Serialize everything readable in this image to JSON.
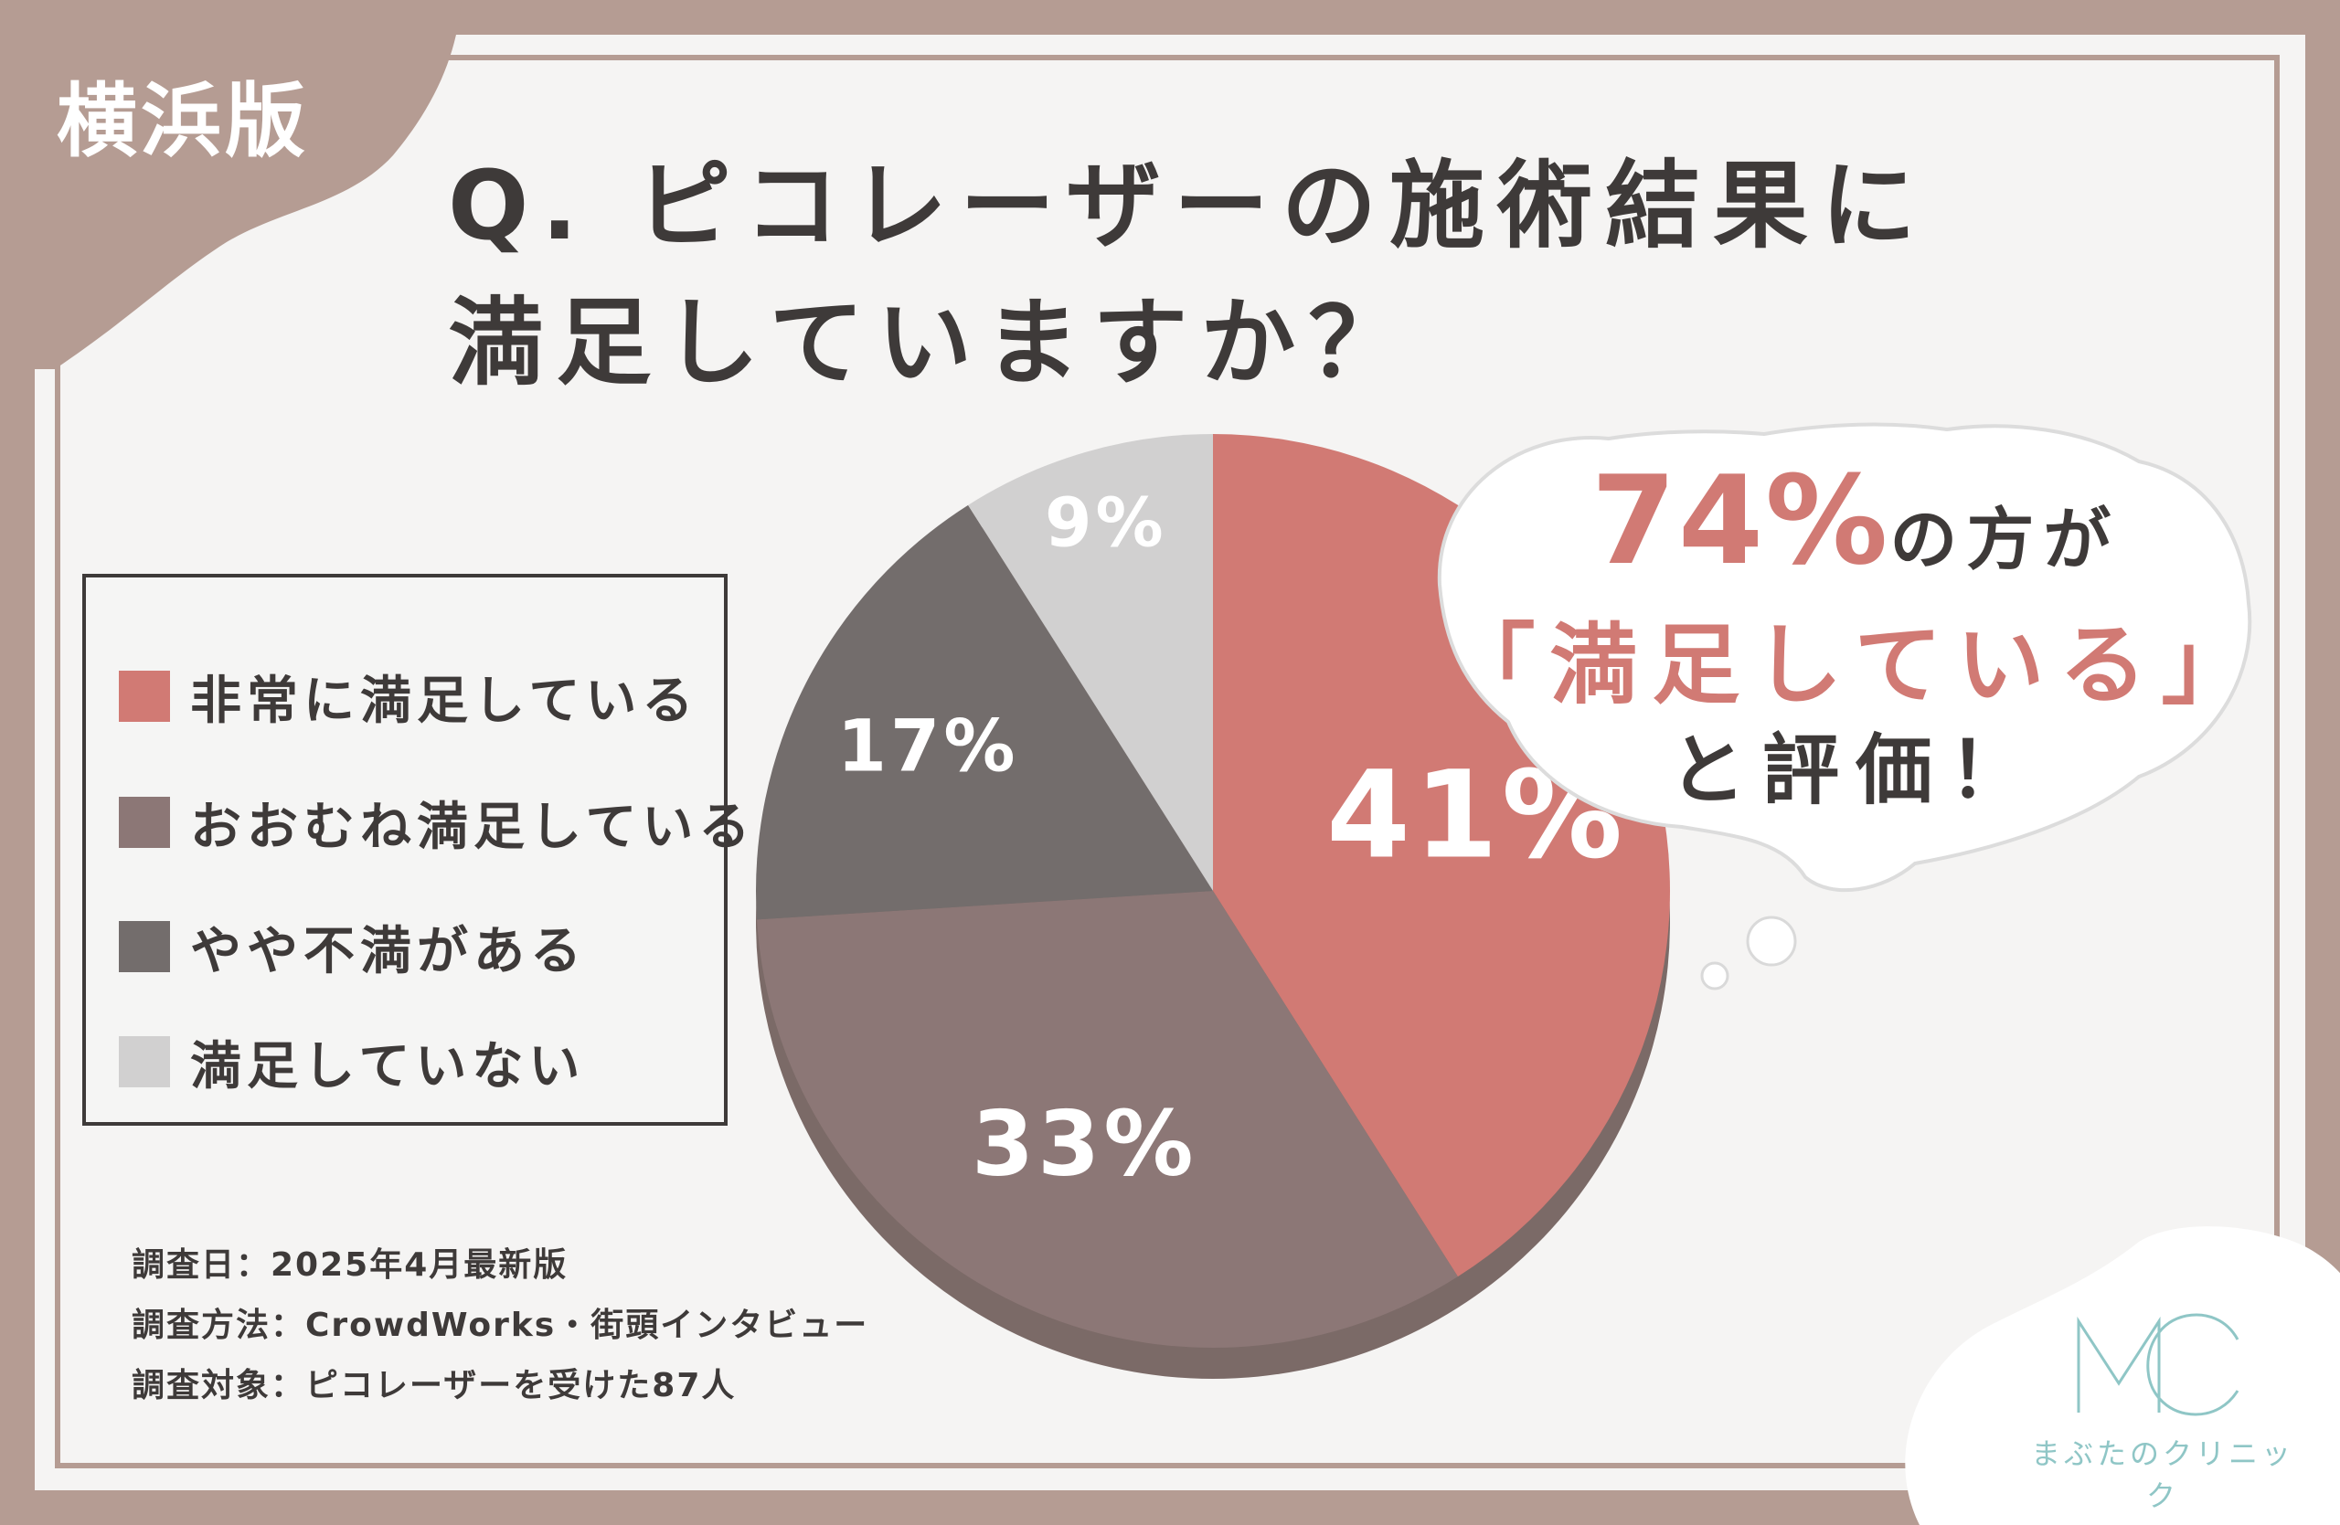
{
  "corner_tag": "横浜版",
  "title": {
    "line1": "Q. ピコレーザーの施術結果に",
    "line2": "満足していますか？"
  },
  "legend": [
    {
      "label": "非常に満足している",
      "color": "#d17a74"
    },
    {
      "label": "おおむね満足している",
      "color": "#8c7776"
    },
    {
      "label": "やや不満がある",
      "color": "#736d6c"
    },
    {
      "label": "満足していない",
      "color": "#d1d0d0"
    }
  ],
  "chart_data": {
    "type": "pie",
    "categories": [
      "非常に満足している",
      "おおむね満足している",
      "やや不満がある",
      "満足していない"
    ],
    "values": [
      41,
      33,
      17,
      9
    ],
    "value_labels": [
      "41%",
      "33%",
      "17%",
      "9%"
    ],
    "colors": [
      "#d17a74",
      "#8c7776",
      "#736d6c",
      "#d1d0d0"
    ],
    "start": "12 o'clock",
    "direction": "clockwise"
  },
  "callout": {
    "percent": "74%",
    "suffix": "の方が",
    "quote": "「満足している」",
    "tail": "と評価！"
  },
  "notes": [
    "調査日：2025年4月最新版",
    "調査方法：CrowdWorks・街頭インタビュー",
    "調査対象：ピコレーザーを受けた87人"
  ],
  "logo": {
    "mark": "MC",
    "name": "まぶたのクリニック",
    "color": "#8fc6c6"
  },
  "colors": {
    "frame": "#b59c93",
    "background": "#f5f4f3",
    "text": "#3e3a39",
    "accent": "#d17a74"
  }
}
